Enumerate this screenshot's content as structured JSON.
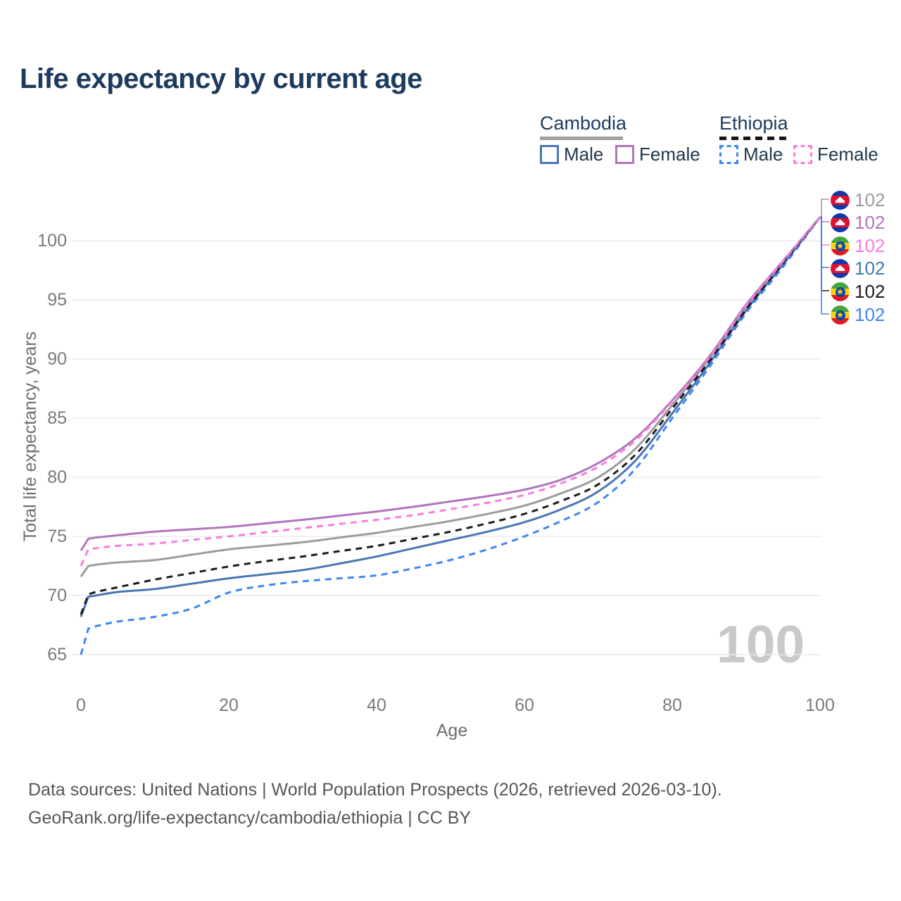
{
  "title": "Life expectancy by current age",
  "watermark": "100",
  "legend": {
    "cambodia": {
      "label": "Cambodia",
      "underline_color": "#a0a0a0",
      "underline_style": "solid",
      "male_label": "Male",
      "female_label": "Female"
    },
    "ethiopia": {
      "label": "Ethiopia",
      "underline_color": "#141414",
      "underline_style": "dashed",
      "male_label": "Male",
      "female_label": "Female"
    }
  },
  "footer": {
    "line1": "Data sources: United Nations | World Population Prospects (2026, retrieved 2026-03-10).",
    "line2": "GeoRank.org/life-expectancy/cambodia/ethiopia | CC BY"
  },
  "chart_data": {
    "type": "line",
    "title": "Life expectancy by current age",
    "xlabel": "Age",
    "ylabel": "Total life expectancy, years",
    "xticks": [
      0,
      20,
      40,
      60,
      80,
      100
    ],
    "yticks": [
      65,
      70,
      75,
      80,
      85,
      90,
      95,
      100
    ],
    "xlim": [
      0,
      100
    ],
    "ylim": [
      63.5,
      103.5
    ],
    "grid": "horizontal",
    "legend_position": "top-right",
    "ages": [
      0,
      1,
      2,
      5,
      10,
      15,
      20,
      25,
      30,
      35,
      40,
      45,
      50,
      55,
      60,
      65,
      70,
      75,
      80,
      85,
      90,
      95,
      100
    ],
    "series": [
      {
        "name": "Cambodia Both sexes",
        "country": "Cambodia",
        "sex": "Both",
        "color": "#9c9c9c",
        "line_style": "solid",
        "flag": "cambodia",
        "end_label": "102",
        "values": [
          71.6,
          72.5,
          72.6,
          72.8,
          73.0,
          73.45,
          73.9,
          74.2,
          74.5,
          74.9,
          75.3,
          75.8,
          76.3,
          76.9,
          77.6,
          78.65,
          80.0,
          82.4,
          86.1,
          90.0,
          94.4,
          98.2,
          102
        ]
      },
      {
        "name": "Cambodia Female",
        "country": "Cambodia",
        "sex": "Female",
        "color": "#b175bd",
        "line_style": "solid",
        "flag": "cambodia",
        "end_label": "102",
        "values": [
          73.8,
          74.8,
          74.9,
          75.1,
          75.4,
          75.6,
          75.8,
          76.1,
          76.4,
          76.75,
          77.1,
          77.5,
          77.95,
          78.4,
          78.95,
          79.8,
          81.2,
          83.3,
          86.5,
          90.2,
          94.6,
          98.3,
          102
        ]
      },
      {
        "name": "Ethiopia Female",
        "country": "Ethiopia",
        "sex": "Female",
        "color": "#f97ce1",
        "line_style": "dashed",
        "flag": "ethiopia",
        "end_label": "102",
        "values": [
          72.5,
          73.9,
          74.0,
          74.2,
          74.4,
          74.7,
          75.0,
          75.35,
          75.7,
          76.05,
          76.4,
          76.8,
          77.3,
          77.85,
          78.5,
          79.5,
          80.9,
          83.1,
          86.4,
          90.1,
          94.5,
          98.25,
          102
        ]
      },
      {
        "name": "Cambodia Male",
        "country": "Cambodia",
        "sex": "Male",
        "color": "#4a76b4",
        "line_style": "solid",
        "flag": "cambodia",
        "end_label": "102",
        "values": [
          68.2,
          69.9,
          70.0,
          70.3,
          70.55,
          71.0,
          71.45,
          71.8,
          72.15,
          72.7,
          73.3,
          74.0,
          74.7,
          75.4,
          76.2,
          77.3,
          78.8,
          81.4,
          85.4,
          89.6,
          94.1,
          98.0,
          102
        ]
      },
      {
        "name": "Ethiopia Both sexes",
        "country": "Ethiopia",
        "sex": "Both",
        "color": "#1c1c1c",
        "line_style": "dashed",
        "flag": "ethiopia",
        "end_label": "102",
        "values": [
          68.4,
          70.1,
          70.3,
          70.7,
          71.35,
          71.9,
          72.45,
          72.9,
          73.3,
          73.75,
          74.2,
          74.8,
          75.4,
          76.1,
          76.9,
          78.0,
          79.4,
          81.9,
          85.8,
          89.8,
          94.2,
          98.1,
          102
        ]
      },
      {
        "name": "Ethiopia Male",
        "country": "Ethiopia",
        "sex": "Male",
        "color": "#3f85f5",
        "line_style": "dashed",
        "flag": "ethiopia",
        "end_label": "102",
        "values": [
          65.0,
          67.2,
          67.4,
          67.8,
          68.2,
          68.9,
          70.25,
          70.85,
          71.2,
          71.45,
          71.7,
          72.3,
          73.0,
          73.9,
          75.0,
          76.3,
          77.9,
          80.7,
          85.0,
          89.3,
          93.9,
          97.8,
          102
        ]
      }
    ]
  }
}
